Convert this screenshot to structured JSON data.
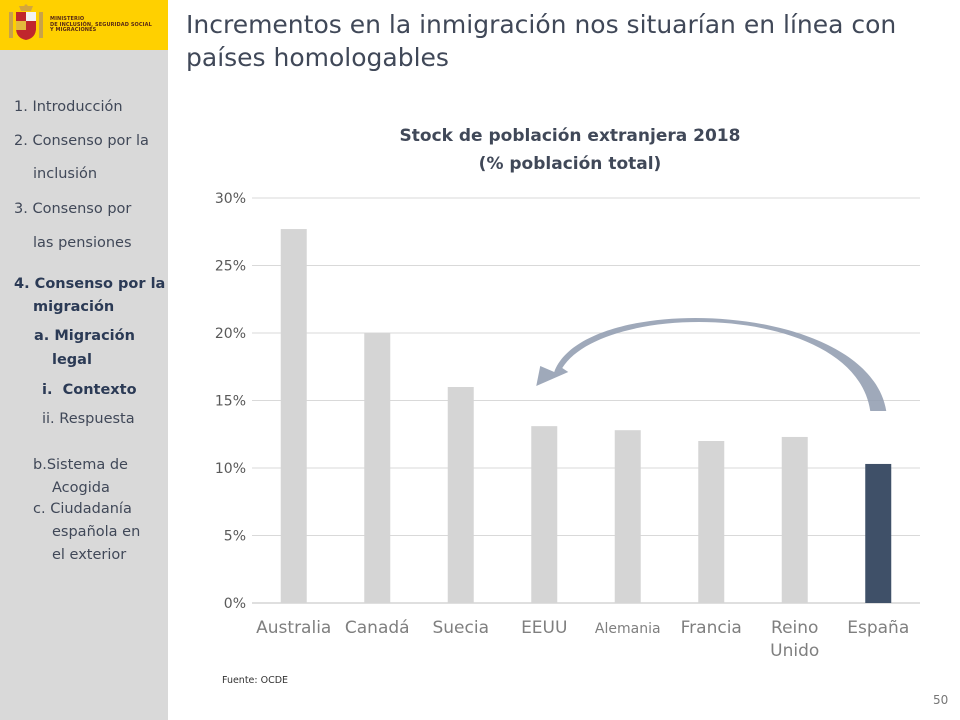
{
  "header": {
    "ministry": "MINISTERIO\nDE INCLUSIÓN, SEGURIDAD SOCIAL\nY MIGRACIONES",
    "title_line1": "Incrementos en la inmigración nos situarían en línea con",
    "title_line2": "países homologables"
  },
  "sidebar": {
    "items": [
      {
        "num": "1.",
        "label": "Introducción"
      },
      {
        "num": "2.",
        "label": "Consenso por la"
      },
      {
        "num": "",
        "label": "inclusión"
      },
      {
        "num": "3.",
        "label": "Consenso por"
      },
      {
        "num": "",
        "label": "las pensiones"
      },
      {
        "num": "4.",
        "label": "Consenso por la"
      },
      {
        "num": "",
        "label": "migración"
      },
      {
        "num": "a.",
        "label": "Migración"
      },
      {
        "num": "",
        "label": "legal"
      },
      {
        "num": "i.",
        "label": "Contexto"
      },
      {
        "num": "ii.",
        "label": "Respuesta"
      },
      {
        "num": "b.",
        "label": "Sistema de"
      },
      {
        "num": "",
        "label": "Acogida"
      },
      {
        "num": "c.",
        "label": "Ciudadanía"
      },
      {
        "num": "",
        "label": "española en"
      },
      {
        "num": "",
        "label": "el exterior"
      }
    ]
  },
  "chart_data": {
    "type": "bar",
    "title_line1": "Stock de población extranjera 2018",
    "title_line2": "(% población total)",
    "categories": [
      "Australia",
      "Canadá",
      "Suecia",
      "EEUU",
      "Alemania",
      "Francia",
      "Reino Unido",
      "España"
    ],
    "values": [
      27.7,
      20.0,
      16.0,
      13.1,
      12.8,
      12.0,
      12.3,
      10.3
    ],
    "ylim": [
      0,
      30
    ],
    "yticks": [
      "0%",
      "5%",
      "10%",
      "15%",
      "20%",
      "25%",
      "30%"
    ],
    "highlight_category": "España",
    "colors": {
      "default": "#d5d5d5",
      "highlight": "#3f5068",
      "arrow": "#8e9aae"
    },
    "grid": true
  },
  "footer": {
    "source": "Fuente:  OCDE",
    "page": "50"
  }
}
